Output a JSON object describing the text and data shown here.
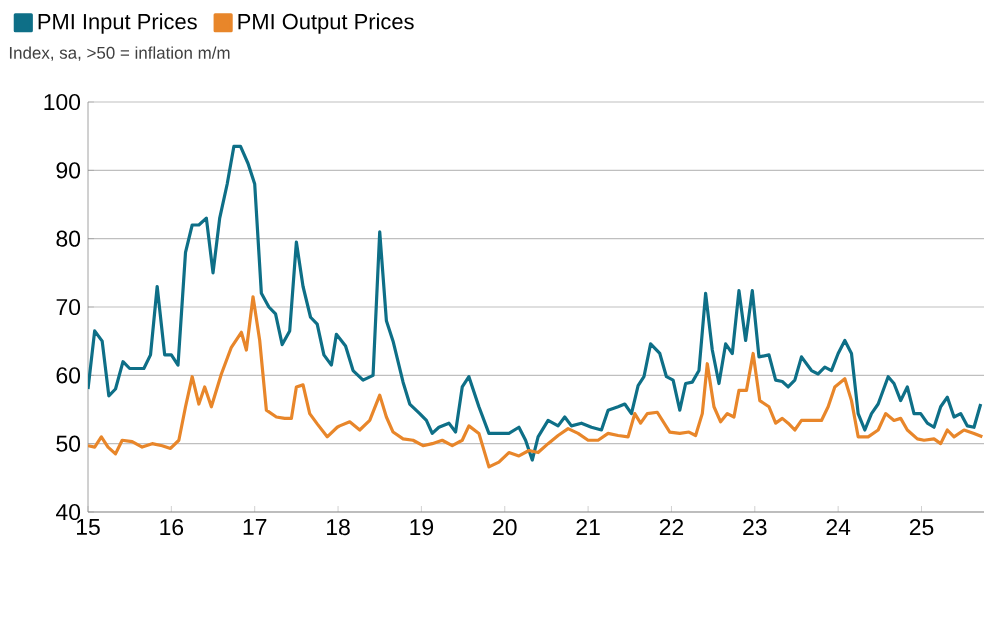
{
  "chart_data": {
    "type": "line",
    "subtitle": "Index, sa, >50 = inflation m/m",
    "xlim": [
      2015,
      2025.75
    ],
    "xticks": [
      {
        "value": 2015,
        "label": "15"
      },
      {
        "value": 2016,
        "label": "16"
      },
      {
        "value": 2017,
        "label": "17"
      },
      {
        "value": 2018,
        "label": "18"
      },
      {
        "value": 2019,
        "label": "19"
      },
      {
        "value": 2020,
        "label": "20"
      },
      {
        "value": 2021,
        "label": "21"
      },
      {
        "value": 2022,
        "label": "22"
      },
      {
        "value": 2023,
        "label": "23"
      },
      {
        "value": 2024,
        "label": "24"
      },
      {
        "value": 2025,
        "label": "25"
      }
    ],
    "ylim": [
      40,
      100
    ],
    "yticks": [
      40,
      50,
      60,
      70,
      80,
      90,
      100
    ],
    "grid": "y",
    "legend": "top left",
    "marker": "none",
    "line_style": "solid",
    "series": [
      {
        "name": "PMI Input Prices",
        "color": "#0e6f87",
        "x": [
          2015.0,
          2015.08,
          2015.17,
          2015.25,
          2015.33,
          2015.42,
          2015.5,
          2015.58,
          2015.67,
          2015.75,
          2015.83,
          2015.92,
          2016.0,
          2016.08,
          2016.17,
          2016.25,
          2016.33,
          2016.42,
          2016.5,
          2016.58,
          2016.67,
          2016.75,
          2016.83,
          2016.92,
          2017.0,
          2017.08,
          2017.17,
          2017.25,
          2017.33,
          2017.42,
          2017.5,
          2017.58,
          2017.67,
          2017.75,
          2017.83,
          2017.92,
          2017.98,
          2018.09,
          2018.18,
          2018.3,
          2018.42,
          2018.5,
          2018.58,
          2018.66,
          2018.78,
          2018.86,
          2018.98,
          2019.06,
          2019.13,
          2019.21,
          2019.33,
          2019.41,
          2019.49,
          2019.57,
          2019.69,
          2019.81,
          2019.93,
          2020.05,
          2020.17,
          2020.25,
          2020.33,
          2020.4,
          2020.52,
          2020.64,
          2020.72,
          2020.8,
          2020.92,
          2021.04,
          2021.16,
          2021.24,
          2021.36,
          2021.44,
          2021.52,
          2021.6,
          2021.67,
          2021.75,
          2021.86,
          2021.94,
          2022.02,
          2022.1,
          2022.17,
          2022.25,
          2022.33,
          2022.41,
          2022.49,
          2022.57,
          2022.65,
          2022.73,
          2022.81,
          2022.89,
          2022.97,
          2023.05,
          2023.17,
          2023.25,
          2023.33,
          2023.4,
          2023.48,
          2023.56,
          2023.68,
          2023.76,
          2023.84,
          2023.92,
          2024.0,
          2024.08,
          2024.16,
          2024.24,
          2024.32,
          2024.4,
          2024.48,
          2024.6,
          2024.67,
          2024.75,
          2024.83,
          2024.91,
          2024.99,
          2025.07,
          2025.15,
          2025.23,
          2025.31,
          2025.39,
          2025.47,
          2025.55,
          2025.63,
          2025.71
        ],
        "values": [
          58,
          66.5,
          65,
          57,
          58,
          62,
          61,
          61,
          61,
          63,
          73,
          63,
          63,
          61.5,
          78,
          82,
          82,
          83,
          75,
          83,
          88,
          93.5,
          93.5,
          91,
          88,
          72,
          70,
          69,
          64.5,
          66.5,
          79.5,
          73,
          68.5,
          67.5,
          63,
          61.5,
          66,
          64.3,
          60.7,
          59.3,
          60,
          81,
          68,
          65,
          59,
          55.8,
          54.4,
          53.4,
          51.5,
          52.4,
          53,
          51.7,
          58.3,
          59.8,
          55.4,
          51.5,
          51.5,
          51.5,
          52.4,
          50.5,
          47.6,
          51,
          53.4,
          52.6,
          53.9,
          52.6,
          53,
          52.4,
          52,
          54.9,
          55.4,
          55.8,
          54.4,
          58.5,
          59.8,
          64.6,
          63.2,
          59.8,
          59.3,
          54.9,
          58.8,
          59,
          60.7,
          72,
          63.7,
          58.8,
          64.6,
          63.2,
          72.4,
          65.1,
          72.4,
          62.7,
          63,
          59.3,
          59.1,
          58.3,
          59.3,
          62.7,
          60.7,
          60.2,
          61.2,
          60.7,
          63.2,
          65.1,
          63.2,
          54.4,
          52,
          54.4,
          55.8,
          59.8,
          58.8,
          56.3,
          58.3,
          54.4,
          54.4,
          53,
          52.4,
          55.4,
          56.8,
          53.9,
          54.4,
          52.6,
          52.4,
          55.8
        ]
      },
      {
        "name": "PMI Output Prices",
        "color": "#e8862a",
        "x": [
          2015.0,
          2015.08,
          2015.16,
          2015.24,
          2015.33,
          2015.41,
          2015.53,
          2015.65,
          2015.77,
          2015.89,
          2015.99,
          2016.09,
          2016.17,
          2016.25,
          2016.33,
          2016.4,
          2016.48,
          2016.6,
          2016.72,
          2016.84,
          2016.9,
          2016.98,
          2017.06,
          2017.14,
          2017.26,
          2017.36,
          2017.44,
          2017.5,
          2017.58,
          2017.66,
          2017.75,
          2017.87,
          2017.99,
          2018.02,
          2018.14,
          2018.26,
          2018.38,
          2018.5,
          2018.58,
          2018.66,
          2018.78,
          2018.9,
          2019.02,
          2019.13,
          2019.25,
          2019.37,
          2019.49,
          2019.57,
          2019.69,
          2019.81,
          2019.93,
          2020.05,
          2020.17,
          2020.29,
          2020.4,
          2020.52,
          2020.64,
          2020.76,
          2020.88,
          2021.0,
          2021.12,
          2021.24,
          2021.36,
          2021.48,
          2021.56,
          2021.63,
          2021.71,
          2021.83,
          2021.98,
          2022.1,
          2022.21,
          2022.29,
          2022.37,
          2022.43,
          2022.51,
          2022.59,
          2022.67,
          2022.75,
          2022.81,
          2022.9,
          2022.98,
          2023.06,
          2023.17,
          2023.25,
          2023.33,
          2023.4,
          2023.48,
          2023.56,
          2023.68,
          2023.8,
          2023.88,
          2023.96,
          2024.08,
          2024.16,
          2024.24,
          2024.36,
          2024.48,
          2024.57,
          2024.67,
          2024.75,
          2024.83,
          2024.95,
          2025.03,
          2025.15,
          2025.23,
          2025.31,
          2025.39,
          2025.51,
          2025.63,
          2025.73
        ],
        "values": [
          49.7,
          49.5,
          51,
          49.5,
          48.5,
          50.5,
          50.3,
          49.5,
          50,
          49.7,
          49.3,
          50.5,
          55.4,
          59.8,
          55.8,
          58.3,
          55.4,
          60.2,
          64.1,
          66.3,
          63.7,
          71.5,
          65.1,
          54.9,
          53.9,
          53.7,
          53.7,
          58.3,
          58.6,
          54.4,
          52.9,
          51,
          52.4,
          52.6,
          53.2,
          52,
          53.4,
          57.1,
          53.9,
          51.7,
          50.7,
          50.5,
          49.7,
          50,
          50.5,
          49.7,
          50.5,
          52.6,
          51.5,
          46.6,
          47.3,
          48.7,
          48.2,
          49,
          48.7,
          50,
          51.2,
          52.2,
          51.5,
          50.5,
          50.5,
          51.5,
          51.2,
          51,
          54.4,
          53,
          54.4,
          54.6,
          51.7,
          51.5,
          51.7,
          51.2,
          54.4,
          61.7,
          55.4,
          53.2,
          54.4,
          53.9,
          57.8,
          57.8,
          63.2,
          56.3,
          55.4,
          53,
          53.7,
          53,
          52,
          53.4,
          53.4,
          53.4,
          55.4,
          58.3,
          59.5,
          56.3,
          51,
          51,
          52,
          54.4,
          53.4,
          53.7,
          52,
          50.7,
          50.5,
          50.7,
          50,
          52,
          51,
          52,
          51.5,
          51
        ]
      }
    ]
  }
}
